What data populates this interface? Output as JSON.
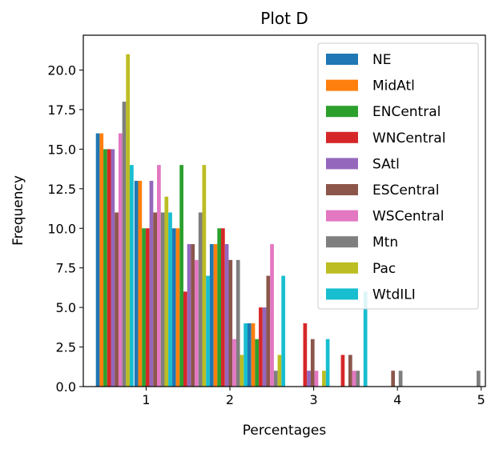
{
  "chart_data": {
    "type": "bar",
    "title": "Plot D",
    "xlabel": "Percentages",
    "ylabel": "Frequency",
    "xlim": [
      0.25,
      5.05
    ],
    "ylim": [
      0,
      22.2
    ],
    "xticks": [
      "1",
      "2",
      "3",
      "4",
      "5"
    ],
    "yticks": [
      "0.0",
      "2.5",
      "5.0",
      "7.5",
      "10.0",
      "12.5",
      "15.0",
      "17.5",
      "20.0"
    ],
    "grid": false,
    "legend_position": "top-right",
    "groups": [
      {
        "x": 0.4,
        "values": [
          16,
          16,
          15,
          15,
          15,
          11,
          16,
          18,
          21,
          14
        ]
      },
      {
        "x": 0.86,
        "values": [
          13,
          13,
          10,
          10,
          13,
          11,
          14,
          11,
          12,
          11
        ]
      },
      {
        "x": 1.31,
        "values": [
          10,
          10,
          14,
          6,
          9,
          9,
          8,
          11,
          14,
          7
        ]
      },
      {
        "x": 1.76,
        "values": [
          9,
          9,
          10,
          10,
          9,
          8,
          3,
          8,
          2,
          4
        ]
      },
      {
        "x": 2.21,
        "values": [
          4,
          4,
          3,
          5,
          5,
          7,
          9,
          1,
          2,
          7
        ]
      },
      {
        "x": 2.74,
        "values": [
          0,
          0,
          0,
          4,
          1,
          3,
          1,
          0,
          1,
          3
        ]
      },
      {
        "x": 3.19,
        "values": [
          0,
          0,
          0,
          2,
          0,
          2,
          1,
          1,
          0,
          6
        ]
      },
      {
        "x": 3.7,
        "values": [
          0,
          0,
          0,
          0,
          0,
          1,
          0,
          1,
          0,
          0
        ]
      },
      {
        "x": 4.63,
        "values": [
          0,
          0,
          0,
          0,
          0,
          0,
          0,
          1,
          0,
          0
        ]
      }
    ],
    "series": [
      {
        "name": "NE",
        "color": "#1f77b4"
      },
      {
        "name": "MidAtl",
        "color": "#ff7f0e"
      },
      {
        "name": "ENCentral",
        "color": "#2ca02c"
      },
      {
        "name": "WNCentral",
        "color": "#d62728"
      },
      {
        "name": "SAtl",
        "color": "#9467bd"
      },
      {
        "name": "ESCentral",
        "color": "#8c564b"
      },
      {
        "name": "WSCentral",
        "color": "#e377c2"
      },
      {
        "name": "Mtn",
        "color": "#7f7f7f"
      },
      {
        "name": "Pac",
        "color": "#bcbd22"
      },
      {
        "name": "WtdILI",
        "color": "#17becf"
      }
    ]
  }
}
